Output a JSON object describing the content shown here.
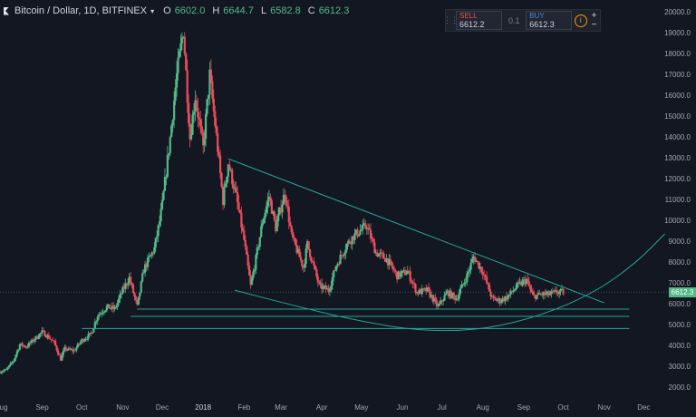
{
  "header": {
    "symbol": "Bitcoin / Dollar, 1D, BITFINEX",
    "ohlc": [
      {
        "k": "O",
        "v": "6602.0"
      },
      {
        "k": "H",
        "v": "6644.7"
      },
      {
        "k": "L",
        "v": "6582.8"
      },
      {
        "k": "C",
        "v": "6612.3"
      }
    ]
  },
  "trade_panel": {
    "sell_label": "SELL",
    "sell_price": "6612.2",
    "spread": "0.1",
    "buy_label": "BUY",
    "buy_price": "6612.3",
    "info_icon": "i",
    "plus": "+",
    "minus": "−"
  },
  "last_price_label": "6612.3",
  "colors": {
    "up": "#53b987",
    "down": "#eb4d5c",
    "line": "#26a69a",
    "bg": "#131722"
  },
  "chart_data": {
    "type": "candlestick",
    "symbol": "Bitcoin / Dollar",
    "interval": "1D",
    "exchange": "BITFINEX",
    "y_ticks": [
      2000,
      3000,
      4000,
      5000,
      6000,
      7000,
      8000,
      9000,
      10000,
      11000,
      12000,
      13000,
      14000,
      15000,
      16000,
      17000,
      18000,
      19000,
      20000
    ],
    "y_tick_labels": [
      "2000.0",
      "3000.0",
      "4000.0",
      "5000.0",
      "6000.0",
      "7000.0",
      "8000.0",
      "9000.0",
      "10000.0",
      "11000.0",
      "12000.0",
      "13000.0",
      "14000.0",
      "15000.0",
      "16000.0",
      "17000.0",
      "18000.0",
      "19000.0",
      "20000.0"
    ],
    "ylim": [
      1500,
      20600
    ],
    "x_ticks": [
      "2017-08-01",
      "2017-09-01",
      "2017-10-01",
      "2017-11-01",
      "2017-12-01",
      "2018-01-01",
      "2018-02-01",
      "2018-03-01",
      "2018-04-01",
      "2018-05-01",
      "2018-06-01",
      "2018-07-01",
      "2018-08-01",
      "2018-09-01",
      "2018-10-01",
      "2018-11-01",
      "2018-12-01"
    ],
    "x_tick_labels": [
      "Aug",
      "Sep",
      "Oct",
      "Nov",
      "Dec",
      "2018",
      "Feb",
      "Mar",
      "Apr",
      "May",
      "Jun",
      "Jul",
      "Aug",
      "Sep",
      "Oct",
      "Nov",
      "Dec"
    ],
    "xlim": [
      "2017-07-31",
      "2018-12-20"
    ],
    "close_anchors": [
      [
        "2017-07-31",
        2800
      ],
      [
        "2017-08-05",
        2900
      ],
      [
        "2017-08-10",
        3300
      ],
      [
        "2017-08-15",
        4100
      ],
      [
        "2017-08-20",
        4000
      ],
      [
        "2017-08-25",
        4300
      ],
      [
        "2017-09-01",
        4700
      ],
      [
        "2017-09-05",
        4500
      ],
      [
        "2017-09-10",
        4200
      ],
      [
        "2017-09-15",
        3400
      ],
      [
        "2017-09-18",
        3900
      ],
      [
        "2017-09-25",
        3800
      ],
      [
        "2017-10-01",
        4300
      ],
      [
        "2017-10-08",
        4600
      ],
      [
        "2017-10-13",
        5500
      ],
      [
        "2017-10-20",
        5900
      ],
      [
        "2017-10-26",
        5800
      ],
      [
        "2017-11-01",
        6700
      ],
      [
        "2017-11-06",
        7300
      ],
      [
        "2017-11-12",
        5900
      ],
      [
        "2017-11-17",
        7700
      ],
      [
        "2017-11-25",
        8700
      ],
      [
        "2017-11-29",
        10000
      ],
      [
        "2017-12-01",
        10800
      ],
      [
        "2017-12-07",
        14000
      ],
      [
        "2017-12-12",
        17000
      ],
      [
        "2017-12-17",
        19200
      ],
      [
        "2017-12-22",
        14000
      ],
      [
        "2017-12-26",
        16000
      ],
      [
        "2018-01-01",
        13500
      ],
      [
        "2018-01-06",
        17000
      ],
      [
        "2018-01-12",
        13500
      ],
      [
        "2018-01-16",
        11000
      ],
      [
        "2018-01-20",
        12800
      ],
      [
        "2018-01-26",
        11200
      ],
      [
        "2018-02-01",
        9100
      ],
      [
        "2018-02-06",
        6900
      ],
      [
        "2018-02-10",
        8200
      ],
      [
        "2018-02-15",
        10000
      ],
      [
        "2018-02-20",
        11200
      ],
      [
        "2018-02-25",
        9700
      ],
      [
        "2018-03-04",
        11400
      ],
      [
        "2018-03-09",
        9300
      ],
      [
        "2018-03-18",
        7800
      ],
      [
        "2018-03-21",
        8900
      ],
      [
        "2018-03-30",
        6900
      ],
      [
        "2018-04-06",
        6700
      ],
      [
        "2018-04-12",
        7900
      ],
      [
        "2018-04-20",
        8900
      ],
      [
        "2018-04-25",
        9300
      ],
      [
        "2018-05-05",
        9800
      ],
      [
        "2018-05-12",
        8500
      ],
      [
        "2018-05-20",
        8200
      ],
      [
        "2018-05-28",
        7400
      ],
      [
        "2018-06-05",
        7600
      ],
      [
        "2018-06-12",
        6600
      ],
      [
        "2018-06-20",
        6700
      ],
      [
        "2018-06-28",
        5900
      ],
      [
        "2018-07-05",
        6600
      ],
      [
        "2018-07-12",
        6300
      ],
      [
        "2018-07-20",
        7400
      ],
      [
        "2018-07-25",
        8300
      ],
      [
        "2018-08-01",
        7600
      ],
      [
        "2018-08-08",
        6300
      ],
      [
        "2018-08-14",
        6200
      ],
      [
        "2018-08-20",
        6400
      ],
      [
        "2018-08-27",
        6900
      ],
      [
        "2018-09-03",
        7200
      ],
      [
        "2018-09-08",
        6400
      ],
      [
        "2018-09-14",
        6500
      ],
      [
        "2018-09-20",
        6500
      ],
      [
        "2018-09-26",
        6600
      ],
      [
        "2018-10-01",
        6612.3
      ]
    ],
    "trendlines": [
      {
        "name": "descending",
        "points": [
          [
            "2018-01-20",
            13000
          ],
          [
            "2018-11-01",
            6100
          ]
        ]
      },
      {
        "name": "support-1",
        "points": [
          [
            "2017-11-12",
            5800
          ],
          [
            "2018-11-20",
            5800
          ]
        ]
      },
      {
        "name": "support-2",
        "points": [
          [
            "2017-11-07",
            5450
          ],
          [
            "2018-11-20",
            5450
          ]
        ]
      },
      {
        "name": "support-3",
        "points": [
          [
            "2017-10-01",
            4870
          ],
          [
            "2018-11-20",
            4870
          ]
        ]
      }
    ],
    "curve": {
      "name": "rounding-bottom",
      "points": [
        [
          "2018-01-25",
          6700
        ],
        [
          "2018-03-15",
          5900
        ],
        [
          "2018-05-01",
          5200
        ],
        [
          "2018-06-15",
          4750
        ],
        [
          "2018-08-01",
          4800
        ],
        [
          "2018-09-15",
          5500
        ],
        [
          "2018-10-25",
          6600
        ],
        [
          "2018-11-25",
          8000
        ],
        [
          "2018-12-17",
          9400
        ]
      ]
    },
    "last_price": 6612.3,
    "grid": false
  }
}
